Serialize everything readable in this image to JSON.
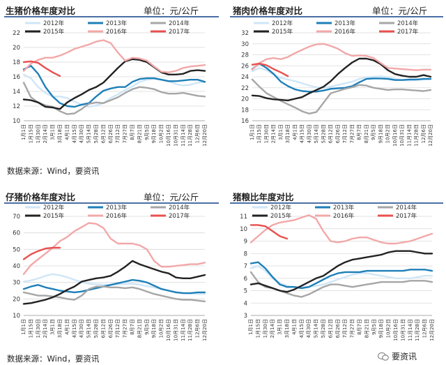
{
  "panels": [
    {
      "title": "生猪价格年度对比",
      "unit": "单位：元/公斤",
      "source": "数据来源：Wind，要资讯",
      "chart_data": {
        "type": "line",
        "ylim": [
          10,
          22
        ],
        "yticks": [
          10,
          12,
          14,
          16,
          18,
          20,
          22
        ],
        "xticks": [
          "1月1日",
          "1月15日",
          "1月30日",
          "2月14日",
          "3月1日",
          "3月18日",
          "4月1日",
          "4月15日",
          "4月30日",
          "5月14日",
          "5月28日",
          "6月12日",
          "6月26日",
          "7月12日",
          "7月27日",
          "8月7日",
          "8月21日",
          "9月5日",
          "9月18日",
          "10月2日",
          "10月16日",
          "10月31日",
          "11月14日",
          "11月28日",
          "12月6日",
          "12月20日"
        ],
        "legend": [
          "2012年",
          "2013年",
          "2014年",
          "2015年",
          "2016年",
          "2017年"
        ],
        "series": [
          {
            "name": "2012年",
            "color": "#cfe6f7",
            "values": [
              16.3,
              15.8,
              14.6,
              13.8,
              13.3,
              13.3,
              13.1,
              12.6,
              12.2,
              11.9,
              12.1,
              12.4,
              13.1,
              13.6,
              14.2,
              14.7,
              15.3,
              15.6,
              15.7,
              15.6,
              15.4,
              15.0,
              14.8,
              14.9,
              15.2,
              15.3
            ]
          },
          {
            "name": "2013年",
            "color": "#1e7fb8",
            "values": [
              17.0,
              17.5,
              16.4,
              14.6,
              13.3,
              12.4,
              12.0,
              11.9,
              12.2,
              12.4,
              13.3,
              14.1,
              14.4,
              14.6,
              14.6,
              15.3,
              15.7,
              15.8,
              15.8,
              15.6,
              15.4,
              15.4,
              15.5,
              15.6,
              15.6,
              15.3
            ]
          },
          {
            "name": "2014年",
            "color": "#a6a6a6",
            "values": [
              15.2,
              13.2,
              12.5,
              12.1,
              11.9,
              11.3,
              10.9,
              11.0,
              11.6,
              12.3,
              12.5,
              12.4,
              12.8,
              13.2,
              13.8,
              14.3,
              14.6,
              14.5,
              14.3,
              13.9,
              13.7,
              13.7,
              13.8,
              13.6,
              13.4,
              13.3
            ]
          },
          {
            "name": "2015年",
            "color": "#222222",
            "values": [
              12.9,
              12.8,
              12.5,
              11.9,
              11.8,
              11.6,
              12.5,
              13.1,
              13.6,
              14.2,
              14.6,
              15.2,
              16.2,
              17.2,
              18.1,
              18.4,
              18.3,
              18.0,
              17.3,
              16.6,
              16.3,
              16.3,
              16.4,
              16.8,
              16.9,
              16.8
            ]
          },
          {
            "name": "2016年",
            "color": "#f2a8a8",
            "values": [
              16.8,
              17.8,
              18.3,
              18.6,
              18.6,
              18.9,
              19.3,
              19.8,
              20.1,
              20.4,
              20.8,
              21.0,
              20.6,
              19.3,
              18.2,
              18.6,
              18.5,
              18.2,
              17.4,
              16.7,
              16.6,
              16.8,
              17.2,
              17.4,
              17.5,
              17.6
            ]
          },
          {
            "name": "2017年",
            "color": "#e8504f",
            "values": [
              18.0,
              18.1,
              17.9,
              17.2,
              16.6,
              16.1
            ]
          }
        ]
      }
    },
    {
      "title": "猪肉价格年度对比",
      "unit": "单位：元/公斤",
      "source": "",
      "chart_data": {
        "type": "line",
        "ylim": [
          16,
          32
        ],
        "yticks": [
          16,
          18,
          20,
          22,
          24,
          26,
          28,
          30,
          32
        ],
        "xticks": [
          "1月1日",
          "1月15日",
          "1月30日",
          "2月14日",
          "3月1日",
          "3月18日",
          "4月1日",
          "4月15日",
          "4月30日",
          "5月14日",
          "5月28日",
          "6月12日",
          "6月26日",
          "7月12日",
          "7月27日",
          "8月7日",
          "8月21日",
          "9月5日",
          "9月18日",
          "10月2日",
          "10月16日",
          "10月31日",
          "11月14日",
          "11月28日",
          "12月6日",
          "12月20日"
        ],
        "legend": [
          "2012年",
          "2013年",
          "2014年",
          "2015年",
          "2016年",
          "2017年"
        ],
        "series": [
          {
            "name": "2012年",
            "color": "#cfe6f7",
            "values": [
              25.0,
              25.6,
              25.2,
              24.4,
              23.8,
              23.5,
              23.2,
              22.8,
              22.4,
              22.1,
              22.0,
              22.2,
              22.5,
              22.8,
              23.1,
              23.6,
              23.9,
              24.0,
              24.1,
              23.9,
              23.6,
              23.4,
              23.3,
              23.4,
              23.5,
              23.6
            ]
          },
          {
            "name": "2013年",
            "color": "#1e7fb8",
            "values": [
              25.4,
              26.4,
              25.6,
              24.5,
              23.1,
              22.3,
              21.7,
              21.4,
              21.3,
              21.3,
              21.5,
              21.8,
              21.9,
              22.0,
              22.3,
              23.0,
              23.6,
              23.7,
              23.7,
              23.6,
              23.4,
              23.4,
              23.5,
              23.5,
              23.6,
              23.6
            ]
          },
          {
            "name": "2014年",
            "color": "#a6a6a6",
            "values": [
              23.5,
              22.2,
              21.0,
              20.3,
              19.6,
              19.0,
              18.4,
              17.7,
              17.3,
              17.6,
              19.3,
              21.0,
              21.4,
              21.8,
              22.1,
              22.5,
              22.4,
              22.0,
              21.8,
              21.6,
              21.7,
              21.7,
              21.6,
              21.5,
              21.4,
              21.6
            ]
          },
          {
            "name": "2015年",
            "color": "#222222",
            "values": [
              20.6,
              20.5,
              20.1,
              19.9,
              19.8,
              19.7,
              20.0,
              20.3,
              21.0,
              21.6,
              22.2,
              23.2,
              24.5,
              25.6,
              26.6,
              27.3,
              27.3,
              27.0,
              26.3,
              25.2,
              24.5,
              24.2,
              24.0,
              24.0,
              24.3,
              24.0
            ]
          },
          {
            "name": "2016年",
            "color": "#f2a8a8",
            "values": [
              25.3,
              26.5,
              27.2,
              27.4,
              27.2,
              27.6,
              28.3,
              28.9,
              29.5,
              29.9,
              30.0,
              29.6,
              29.1,
              28.3,
              27.8,
              27.9,
              27.8,
              27.4,
              26.5,
              25.6,
              25.5,
              25.4,
              25.3,
              25.2,
              25.3,
              25.3
            ]
          },
          {
            "name": "2017年",
            "color": "#e8504f",
            "values": [
              26.2,
              26.4,
              26.1,
              25.4,
              24.8,
              24.1
            ]
          }
        ]
      }
    },
    {
      "title": "仔猪价格年度对比",
      "unit": "单位：元/公斤",
      "source": "数据来源：Wind，要资讯",
      "chart_data": {
        "type": "line",
        "ylim": [
          10,
          70
        ],
        "yticks": [
          10,
          20,
          30,
          40,
          50,
          60,
          70
        ],
        "xticks": [
          "1月1日",
          "1月15日",
          "1月30日",
          "2月14日",
          "3月1日",
          "3月18日",
          "4月1日",
          "4月15日",
          "4月30日",
          "5月14日",
          "5月28日",
          "6月12日",
          "6月26日",
          "7月12日",
          "7月27日",
          "8月7日",
          "8月21日",
          "9月5日",
          "9月18日",
          "10月2日",
          "10月16日",
          "10月31日",
          "11月14日",
          "11月28日",
          "12月6日",
          "12月20日"
        ],
        "legend": [
          "2012年",
          "2013年",
          "2014年",
          "2015年",
          "2016年",
          "2017年"
        ],
        "series": [
          {
            "name": "2012年",
            "color": "#cfe6f7",
            "values": [
              30.5,
              31.2,
              32.4,
              34.0,
              35.0,
              34.3,
              33.1,
              31.6,
              30.2,
              29.2,
              28.9,
              28.6,
              28.6,
              28.8,
              29.1,
              29.2,
              28.6,
              27.8,
              27.0,
              26.0,
              25.1,
              24.2,
              23.6,
              23.3,
              23.1,
              23.0
            ]
          },
          {
            "name": "2013年",
            "color": "#1e7fb8",
            "values": [
              26.0,
              27.5,
              28.5,
              27.0,
              26.0,
              25.0,
              24.5,
              24.0,
              24.5,
              25.5,
              26.5,
              27.5,
              28.5,
              29.5,
              30.5,
              31.5,
              31.0,
              30.0,
              28.0,
              26.0,
              25.0,
              24.0,
              23.5,
              23.5,
              24.0,
              24.0
            ]
          },
          {
            "name": "2014年",
            "color": "#a6a6a6",
            "values": [
              24.0,
              23.0,
              22.0,
              22.0,
              21.5,
              21.0,
              20.0,
              19.5,
              22.0,
              26.0,
              27.5,
              27.5,
              27.0,
              27.0,
              26.5,
              27.0,
              26.0,
              24.5,
              23.0,
              22.0,
              21.0,
              20.0,
              19.5,
              19.5,
              19.0,
              18.5
            ]
          },
          {
            "name": "2015年",
            "color": "#222222",
            "values": [
              17.0,
              17.5,
              18.5,
              19.5,
              21.0,
              23.0,
              25.5,
              27.5,
              30.5,
              31.5,
              32.5,
              33.0,
              34.0,
              36.5,
              39.5,
              43.0,
              41.0,
              39.5,
              38.0,
              36.5,
              35.5,
              33.0,
              32.5,
              32.5,
              33.5,
              34.5
            ]
          },
          {
            "name": "2016年",
            "color": "#f2a8a8",
            "values": [
              35.0,
              40.5,
              44.0,
              47.5,
              51.0,
              55.0,
              57.5,
              61.0,
              63.5,
              66.0,
              65.5,
              63.0,
              56.5,
              53.5,
              53.5,
              53.5,
              52.5,
              50.0,
              43.0,
              39.5,
              39.5,
              40.0,
              40.5,
              41.0,
              41.0,
              42.0
            ]
          },
          {
            "name": "2017年",
            "color": "#e8504f",
            "values": [
              44.0,
              47.0,
              49.0,
              50.5,
              51.0,
              51.0
            ]
          }
        ]
      }
    },
    {
      "title": "猪粮比年度对比",
      "unit": "",
      "source": "",
      "chart_data": {
        "type": "line",
        "ylim": [
          3,
          11
        ],
        "yticks": [
          3,
          4,
          5,
          6,
          7,
          8,
          9,
          10,
          11
        ],
        "xticks": [
          "1月1日",
          "1月15日",
          "1月30日",
          "2月14日",
          "3月1日",
          "3月18日",
          "4月1日",
          "4月15日",
          "4月30日",
          "5月14日",
          "5月28日",
          "6月12日",
          "6月26日",
          "7月12日",
          "7月27日",
          "8月7日",
          "8月21日",
          "9月5日",
          "9月18日",
          "10月2日",
          "10月16日",
          "10月31日",
          "11月14日",
          "11月28日",
          "12月6日",
          "12月20日"
        ],
        "legend": [
          "2012年",
          "2013年",
          "2014年",
          "2015年",
          "2016年",
          "2017年"
        ],
        "series": [
          {
            "name": "2012年",
            "color": "#cfe6f7",
            "values": [
              6.8,
              7.0,
              6.6,
              6.0,
              5.6,
              5.4,
              5.3,
              5.3,
              5.3,
              5.4,
              5.5,
              5.7,
              5.9,
              6.1,
              6.3,
              6.4,
              6.4,
              6.3,
              6.2,
              6.1,
              6.0,
              6.0,
              6.0,
              6.1,
              6.2,
              6.2
            ]
          },
          {
            "name": "2013年",
            "color": "#1e7fb8",
            "values": [
              7.2,
              7.3,
              6.8,
              6.1,
              5.5,
              5.3,
              5.3,
              5.2,
              5.3,
              5.6,
              5.9,
              6.2,
              6.4,
              6.5,
              6.5,
              6.5,
              6.6,
              6.6,
              6.6,
              6.6,
              6.6,
              6.6,
              6.7,
              6.7,
              6.7,
              6.6
            ]
          },
          {
            "name": "2014年",
            "color": "#a6a6a6",
            "values": [
              6.5,
              5.7,
              5.3,
              5.2,
              5.0,
              4.8,
              4.6,
              4.5,
              4.7,
              5.0,
              5.3,
              5.5,
              5.5,
              5.4,
              5.3,
              5.4,
              5.5,
              5.6,
              5.7,
              5.7,
              5.7,
              5.7,
              5.8,
              5.8,
              5.8,
              5.7
            ]
          },
          {
            "name": "2015年",
            "color": "#222222",
            "values": [
              5.5,
              5.6,
              5.4,
              5.2,
              5.0,
              4.9,
              5.1,
              5.4,
              5.7,
              6.0,
              6.2,
              6.6,
              7.0,
              7.3,
              7.5,
              7.6,
              7.7,
              7.8,
              7.9,
              8.1,
              8.2,
              8.2,
              8.2,
              8.1,
              8.0,
              8.0
            ]
          },
          {
            "name": "2016年",
            "color": "#f2a8a8",
            "values": [
              8.9,
              9.4,
              9.9,
              10.3,
              10.5,
              10.6,
              10.7,
              10.9,
              11.1,
              10.8,
              9.8,
              9.0,
              8.9,
              9.0,
              9.2,
              9.3,
              9.3,
              9.1,
              8.9,
              8.8,
              8.8,
              8.9,
              9.0,
              9.2,
              9.4,
              9.6
            ]
          },
          {
            "name": "2017年",
            "color": "#e8504f",
            "values": [
              10.3,
              10.3,
              10.2,
              9.8,
              9.4,
              9.2
            ]
          }
        ]
      }
    }
  ],
  "watermark": "要资讯"
}
